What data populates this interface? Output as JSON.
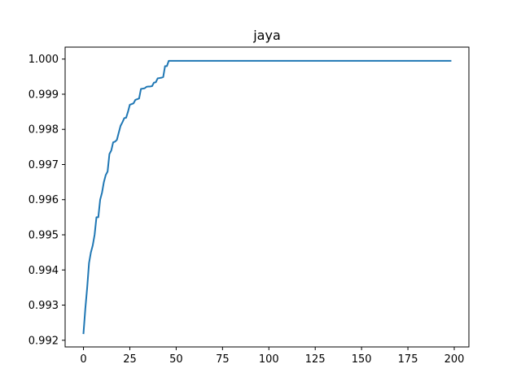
{
  "chart_data": {
    "type": "line",
    "title": "jaya",
    "xlabel": "",
    "ylabel": "",
    "xlim": [
      -9.9,
      207.9
    ],
    "ylim": [
      0.99181,
      1.00034
    ],
    "grid": false,
    "xticks": [
      0,
      25,
      50,
      75,
      100,
      125,
      150,
      175,
      200
    ],
    "yticks": [
      0.992,
      0.993,
      0.994,
      0.995,
      0.996,
      0.997,
      0.998,
      0.999,
      1.0
    ],
    "xtick_labels": [
      "0",
      "25",
      "50",
      "75",
      "100",
      "125",
      "150",
      "175",
      "200"
    ],
    "ytick_labels": [
      "0.992",
      "0.993",
      "0.994",
      "0.995",
      "0.996",
      "0.997",
      "0.998",
      "0.999",
      "1.000"
    ],
    "series": [
      {
        "color": "#1f77b4",
        "x": [
          0,
          1,
          2,
          3,
          4,
          5,
          6,
          7,
          8,
          9,
          10,
          11,
          12,
          13,
          14,
          15,
          16,
          17,
          18,
          19,
          20,
          21,
          22,
          23,
          24,
          25,
          26,
          27,
          28,
          29,
          30,
          31,
          32,
          33,
          34,
          35,
          36,
          37,
          38,
          39,
          40,
          41,
          42,
          43,
          44,
          45,
          46,
          47,
          198
        ],
        "y": [
          0.9922,
          0.9929,
          0.9935,
          0.9942,
          0.9945,
          0.9947,
          0.995,
          0.9955,
          0.9955,
          0.996,
          0.9962,
          0.9965,
          0.9967,
          0.9968,
          0.9973,
          0.9974,
          0.99763,
          0.99765,
          0.9977,
          0.9979,
          0.9981,
          0.9982,
          0.99832,
          0.99833,
          0.9985,
          0.9987,
          0.99872,
          0.99874,
          0.99884,
          0.99886,
          0.99888,
          0.99915,
          0.99916,
          0.99917,
          0.99921,
          0.99922,
          0.99922,
          0.99923,
          0.99933,
          0.99934,
          0.99945,
          0.99946,
          0.99947,
          0.99949,
          0.9998,
          0.9998,
          0.99995,
          0.99995,
          0.99995
        ]
      }
    ]
  }
}
